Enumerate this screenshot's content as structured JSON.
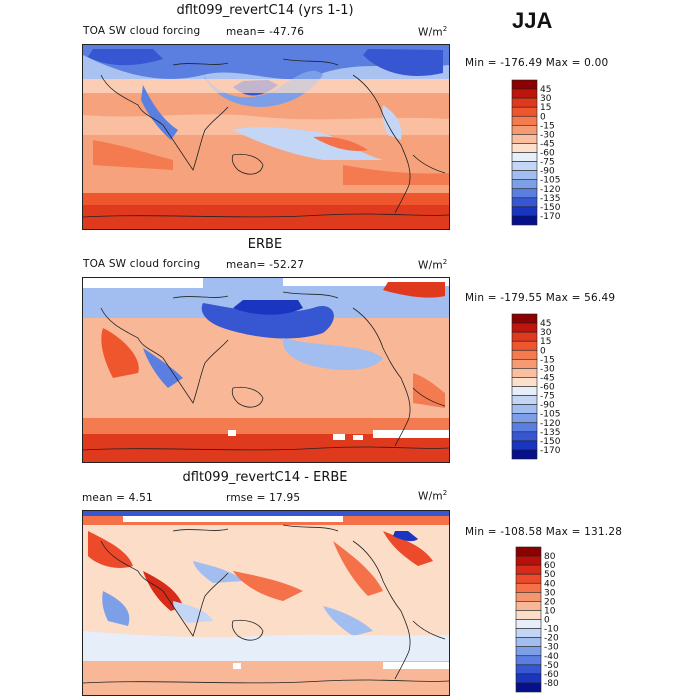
{
  "season": "JJA",
  "panels": [
    {
      "title": "dflt099_revertC14 (yrs 1-1)",
      "field_label": "TOA SW cloud forcing",
      "mean_text": "mean= -47.76",
      "units": "W/m",
      "units_exp": "2",
      "minmax_text": "Min = -176.49  Max =    0.00",
      "colorbar": {
        "levels": [
          "45",
          "30",
          "15",
          "0",
          "-15",
          "-30",
          "-45",
          "-60",
          "-75",
          "-90",
          "-105",
          "-120",
          "-135",
          "-150",
          "-170"
        ],
        "colors": [
          "#8b0000",
          "#c0150c",
          "#e03a1e",
          "#f0562e",
          "#f47a50",
          "#f69a74",
          "#f9bfa0",
          "#fce0cc",
          "#e6eefa",
          "#c4d6f5",
          "#a2bdef",
          "#7d9fe8",
          "#5a7fe0",
          "#3656d2",
          "#1a35c0",
          "#06108a"
        ]
      }
    },
    {
      "title": "ERBE",
      "field_label": "TOA SW cloud forcing",
      "mean_text": "mean= -52.27",
      "units": "W/m",
      "units_exp": "2",
      "minmax_text": "Min = -179.55  Max =   56.49",
      "colorbar": {
        "levels": [
          "45",
          "30",
          "15",
          "0",
          "-15",
          "-30",
          "-45",
          "-60",
          "-75",
          "-90",
          "-105",
          "-120",
          "-135",
          "-150",
          "-170"
        ],
        "colors": [
          "#8b0000",
          "#c0150c",
          "#e03a1e",
          "#f0562e",
          "#f47a50",
          "#f69a74",
          "#f9bfa0",
          "#fce0cc",
          "#e6eefa",
          "#c4d6f5",
          "#a2bdef",
          "#7d9fe8",
          "#5a7fe0",
          "#3656d2",
          "#1a35c0",
          "#06108a"
        ]
      }
    },
    {
      "title": "dflt099_revertC14 - ERBE",
      "mean_text": "mean =    4.51",
      "rmse_text": "rmse =   17.95",
      "units": "W/m",
      "units_exp": "2",
      "minmax_text": "Min = -108.58  Max = 131.28",
      "colorbar": {
        "levels": [
          "80",
          "60",
          "50",
          "40",
          "30",
          "20",
          "10",
          "0",
          "-10",
          "-20",
          "-30",
          "-40",
          "-50",
          "-60",
          "-80"
        ],
        "colors": [
          "#8b0000",
          "#b81008",
          "#d82a18",
          "#ec4a2a",
          "#f4714a",
          "#f69670",
          "#f8b898",
          "#fcddc8",
          "#e6eefa",
          "#c4d6f5",
          "#a2bdef",
          "#7d9fe8",
          "#5a7fe0",
          "#3656d2",
          "#1a35c0",
          "#06108a"
        ]
      }
    }
  ],
  "chart_data": [
    {
      "type": "heatmap",
      "title": "dflt099_revertC14 (yrs 1-1)",
      "variable": "TOA SW cloud forcing",
      "units": "W/m2",
      "mean": -47.76,
      "min": -176.49,
      "max": 0.0,
      "contour_levels": [
        45,
        30,
        15,
        0,
        -15,
        -30,
        -45,
        -60,
        -75,
        -90,
        -105,
        -120,
        -135,
        -150,
        -170
      ]
    },
    {
      "type": "heatmap",
      "title": "ERBE",
      "variable": "TOA SW cloud forcing",
      "units": "W/m2",
      "mean": -52.27,
      "min": -179.55,
      "max": 56.49,
      "contour_levels": [
        45,
        30,
        15,
        0,
        -15,
        -30,
        -45,
        -60,
        -75,
        -90,
        -105,
        -120,
        -135,
        -150,
        -170
      ]
    },
    {
      "type": "heatmap",
      "title": "dflt099_revertC14 - ERBE",
      "units": "W/m2",
      "mean": 4.51,
      "rmse": 17.95,
      "min": -108.58,
      "max": 131.28,
      "contour_levels": [
        80,
        60,
        50,
        40,
        30,
        20,
        10,
        0,
        -10,
        -20,
        -30,
        -40,
        -50,
        -60,
        -80
      ]
    }
  ]
}
